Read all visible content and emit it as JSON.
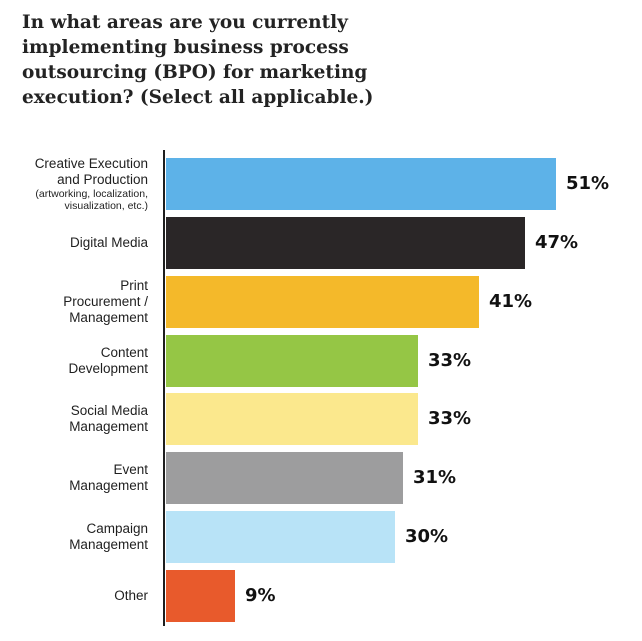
{
  "title": "In what areas are you currently implementing business process outsourcing (BPO) for marketing execution? (Select all applicable.)",
  "chart_data": {
    "type": "bar",
    "orientation": "horizontal",
    "title": "In what areas are you currently implementing business process outsourcing (BPO) for marketing execution? (Select all applicable.)",
    "categories": [
      {
        "label_lines": [
          "Creative Execution",
          "and Production"
        ],
        "sublabel": "(artworking, localization, visualization, etc.)",
        "value": 51,
        "value_label": "51%",
        "color": "#5db2e8"
      },
      {
        "label_lines": [
          "Digital Media"
        ],
        "sublabel": "",
        "value": 47,
        "value_label": "47%",
        "color": "#2a2627"
      },
      {
        "label_lines": [
          "Print",
          "Procurement /",
          "Management"
        ],
        "sublabel": "",
        "value": 41,
        "value_label": "41%",
        "color": "#f4b92a"
      },
      {
        "label_lines": [
          "Content",
          "Development"
        ],
        "sublabel": "",
        "value": 33,
        "value_label": "33%",
        "color": "#95c645"
      },
      {
        "label_lines": [
          "Social Media",
          "Management"
        ],
        "sublabel": "",
        "value": 33,
        "value_label": "33%",
        "color": "#fbe88d"
      },
      {
        "label_lines": [
          "Event",
          "Management"
        ],
        "sublabel": "",
        "value": 31,
        "value_label": "31%",
        "color": "#9d9d9e"
      },
      {
        "label_lines": [
          "Campaign",
          "Management"
        ],
        "sublabel": "",
        "value": 30,
        "value_label": "30%",
        "color": "#b8e3f7"
      },
      {
        "label_lines": [
          "Other"
        ],
        "sublabel": "",
        "value": 9,
        "value_label": "9%",
        "color": "#e85a2c"
      }
    ],
    "xlim": [
      0,
      100
    ],
    "grid": false,
    "legend": "none"
  }
}
